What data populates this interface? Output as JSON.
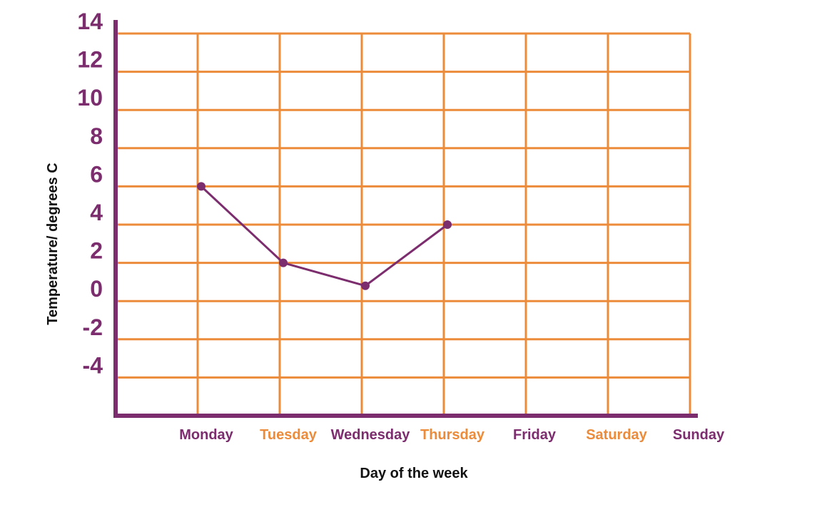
{
  "chart_data": {
    "type": "line",
    "xlabel": "Day of the week",
    "ylabel": "Temperature/ degrees C",
    "categories": [
      "Monday",
      "Tuesday",
      "Wednesday",
      "Thursday",
      "Friday",
      "Saturday",
      "Sunday"
    ],
    "category_label_colors": [
      "#7c2d6e",
      "#ec8b3a",
      "#7c2d6e",
      "#ec8b3a",
      "#7c2d6e",
      "#ec8b3a",
      "#7c2d6e"
    ],
    "y_ticks": [
      "14",
      "12",
      "10",
      "8",
      "6",
      "4",
      "2",
      "0",
      "-2",
      "-4"
    ],
    "ylim": [
      -6,
      14
    ],
    "grid": true,
    "series": [
      {
        "values": [
          6,
          2,
          0.8,
          4,
          null,
          null,
          null
        ]
      }
    ],
    "colors": {
      "axis": "#7c2d6e",
      "grid": "#ec8b3a",
      "line": "#7c2d6e",
      "tick_text": "#7c2d6e",
      "title_text": "#111111"
    }
  }
}
